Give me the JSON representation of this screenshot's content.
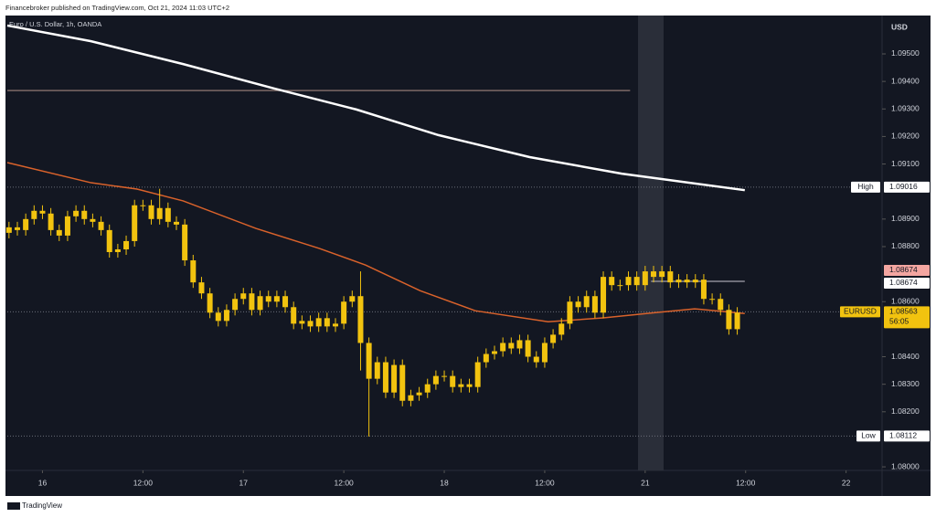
{
  "header": {
    "publisher": "Financebroker published on TradingView.com, Oct 21, 2024 11:03 UTC+2"
  },
  "footer": {
    "brand": "TradingView"
  },
  "chart_data": {
    "type": "candlestick",
    "title": "Euro / U.S. Dollar, 1h, OANDA",
    "y_axis_label": "USD",
    "xlim": [
      -4.2,
      100.3
    ],
    "ylim": [
      1.07987,
      1.09636
    ],
    "xticks": [
      {
        "value": 0,
        "label": "16"
      },
      {
        "value": 12,
        "label": "12:00"
      },
      {
        "value": 24,
        "label": "17"
      },
      {
        "value": 36,
        "label": "12:00"
      },
      {
        "value": 48,
        "label": "18"
      },
      {
        "value": 60,
        "label": "12:00"
      },
      {
        "value": 72,
        "label": "21"
      },
      {
        "value": 84,
        "label": "12:00"
      },
      {
        "value": 96,
        "label": "22"
      }
    ],
    "yticks": [
      {
        "value": 1.08,
        "label": "1.08000"
      },
      {
        "value": 1.082,
        "label": "1.08200"
      },
      {
        "value": 1.083,
        "label": "1.08300"
      },
      {
        "value": 1.084,
        "label": "1.08400"
      },
      {
        "value": 1.086,
        "label": "1.08600"
      },
      {
        "value": 1.088,
        "label": "1.08800"
      },
      {
        "value": 1.089,
        "label": "1.08900"
      },
      {
        "value": 1.091,
        "label": "1.09100"
      },
      {
        "value": 1.092,
        "label": "1.09200"
      },
      {
        "value": 1.093,
        "label": "1.09300"
      },
      {
        "value": 1.094,
        "label": "1.09400"
      },
      {
        "value": 1.095,
        "label": "1.09500"
      }
    ],
    "series": [
      {
        "name": "EURUSD",
        "color": "#f2c30f",
        "x": [
          -4,
          -3,
          -2,
          -1,
          0,
          1,
          2,
          3,
          4,
          5,
          6,
          7,
          8,
          9,
          10,
          11,
          12,
          13,
          14,
          15,
          16,
          17,
          18,
          19,
          20,
          21,
          22,
          23,
          24,
          25,
          26,
          27,
          28,
          29,
          30,
          31,
          32,
          33,
          34,
          35,
          36,
          37,
          38,
          39,
          40,
          41,
          42,
          43,
          44,
          45,
          46,
          47,
          48,
          49,
          50,
          51,
          52,
          53,
          54,
          55,
          56,
          57,
          58,
          59,
          60,
          61,
          62,
          63,
          64,
          65,
          66,
          67,
          68,
          69,
          70,
          71,
          72,
          73,
          74,
          75,
          76,
          77,
          78,
          79,
          80,
          81,
          82,
          83
        ],
        "open": [
          1.0885,
          1.0887,
          1.0886,
          1.089,
          1.0893,
          1.0892,
          1.0886,
          1.0884,
          1.0891,
          1.0893,
          1.089,
          1.0889,
          1.0886,
          1.0878,
          1.0879,
          1.0882,
          1.0895,
          1.0895,
          1.089,
          1.0894,
          1.0889,
          1.0888,
          1.0875,
          1.0867,
          1.0863,
          1.0856,
          1.0853,
          1.0857,
          1.0861,
          1.0863,
          1.0857,
          1.0862,
          1.086,
          1.0862,
          1.0858,
          1.0852,
          1.0853,
          1.0851,
          1.0854,
          1.0851,
          1.0852,
          1.086,
          1.0862,
          1.0845,
          1.0832,
          1.0838,
          1.0827,
          1.0837,
          1.0824,
          1.0826,
          1.0827,
          1.083,
          1.0833,
          1.0833,
          1.0829,
          1.083,
          1.0829,
          1.0838,
          1.0841,
          1.0842,
          1.0845,
          1.0843,
          1.0846,
          1.084,
          1.0838,
          1.0845,
          1.0848,
          1.0852,
          1.086,
          1.0858,
          1.0862,
          1.0856,
          1.0869,
          1.0866,
          1.0866,
          1.0869,
          1.0866,
          1.0871,
          1.0869,
          1.0871,
          1.0867,
          1.0868,
          1.0867,
          1.0868,
          1.0861,
          1.0861,
          1.0857,
          1.085
        ],
        "high": [
          1.0889,
          1.0889,
          1.0892,
          1.0895,
          1.0895,
          1.0894,
          1.0888,
          1.0893,
          1.0895,
          1.0895,
          1.0892,
          1.0891,
          1.0888,
          1.0881,
          1.0884,
          1.0897,
          1.0897,
          1.0897,
          1.0901,
          1.0896,
          1.0891,
          1.089,
          1.0877,
          1.0869,
          1.0865,
          1.0858,
          1.0859,
          1.0863,
          1.0865,
          1.0865,
          1.0864,
          1.0864,
          1.0864,
          1.0864,
          1.086,
          1.0855,
          1.0855,
          1.0856,
          1.0856,
          1.0854,
          1.0862,
          1.0864,
          1.0871,
          1.0847,
          1.084,
          1.084,
          1.0839,
          1.0839,
          1.0828,
          1.0829,
          1.0832,
          1.0835,
          1.0835,
          1.0835,
          1.0832,
          1.0832,
          1.084,
          1.0843,
          1.0844,
          1.0847,
          1.0847,
          1.0848,
          1.0848,
          1.0842,
          1.0847,
          1.085,
          1.0854,
          1.0862,
          1.0862,
          1.0864,
          1.0864,
          1.0871,
          1.0871,
          1.0868,
          1.0871,
          1.0871,
          1.0873,
          1.0873,
          1.0873,
          1.0873,
          1.087,
          1.087,
          1.087,
          1.087,
          1.0863,
          1.0863,
          1.0859,
          1.0858
        ],
        "low": [
          1.0883,
          1.0884,
          1.0884,
          1.0888,
          1.089,
          1.0884,
          1.0882,
          1.0882,
          1.0889,
          1.0888,
          1.0887,
          1.0884,
          1.0876,
          1.0876,
          1.0877,
          1.088,
          1.0893,
          1.0888,
          1.0888,
          1.0887,
          1.0886,
          1.0873,
          1.0865,
          1.0861,
          1.0854,
          1.0851,
          1.0851,
          1.0855,
          1.0859,
          1.0855,
          1.0855,
          1.0858,
          1.0858,
          1.0856,
          1.085,
          1.085,
          1.0849,
          1.0849,
          1.0849,
          1.0849,
          1.085,
          1.0858,
          1.0835,
          1.0811,
          1.083,
          1.0825,
          1.0825,
          1.0822,
          1.0822,
          1.0824,
          1.0825,
          1.0828,
          1.0831,
          1.0827,
          1.0827,
          1.0827,
          1.0827,
          1.0836,
          1.0839,
          1.084,
          1.0841,
          1.0841,
          1.0838,
          1.0836,
          1.0836,
          1.0843,
          1.0846,
          1.085,
          1.0856,
          1.0856,
          1.0854,
          1.0854,
          1.0864,
          1.0864,
          1.0864,
          1.0864,
          1.0864,
          1.0867,
          1.0867,
          1.0865,
          1.0865,
          1.0865,
          1.0865,
          1.0859,
          1.0859,
          1.0855,
          1.0848,
          1.0848
        ],
        "close": [
          1.0887,
          1.0886,
          1.089,
          1.0893,
          1.0892,
          1.0886,
          1.0884,
          1.0891,
          1.0893,
          1.089,
          1.0889,
          1.0886,
          1.0878,
          1.0879,
          1.0882,
          1.0895,
          1.0895,
          1.089,
          1.0894,
          1.0889,
          1.0888,
          1.0875,
          1.0867,
          1.0863,
          1.0856,
          1.0853,
          1.0857,
          1.0861,
          1.0863,
          1.0857,
          1.0862,
          1.086,
          1.0862,
          1.0858,
          1.0852,
          1.0853,
          1.0851,
          1.0854,
          1.0851,
          1.0852,
          1.086,
          1.0862,
          1.0845,
          1.0832,
          1.0838,
          1.0827,
          1.0837,
          1.0824,
          1.0826,
          1.0827,
          1.083,
          1.0833,
          1.0833,
          1.0829,
          1.083,
          1.0829,
          1.0838,
          1.0841,
          1.0842,
          1.0845,
          1.0843,
          1.0846,
          1.084,
          1.0838,
          1.0845,
          1.0848,
          1.0852,
          1.086,
          1.0858,
          1.0862,
          1.0856,
          1.0869,
          1.0866,
          1.0866,
          1.0869,
          1.0866,
          1.0871,
          1.0869,
          1.0871,
          1.0867,
          1.0868,
          1.0867,
          1.0868,
          1.0861,
          1.0861,
          1.0857,
          1.085,
          1.0856
        ]
      }
    ],
    "lines": [
      {
        "color": "#ffffff",
        "x": [
          -4.2,
          5.8,
          16.8,
          27.7,
          37.5,
          47.3,
          58.2,
          69.2,
          83.9
        ],
        "values": [
          1.09603,
          1.09546,
          1.09463,
          1.09374,
          1.09298,
          1.09205,
          1.09125,
          1.09065,
          1.09005
        ]
      },
      {
        "color": "#d9622b",
        "x": [
          -4.2,
          5.8,
          11.3,
          16.8,
          25.5,
          33.1,
          38.6,
          45.1,
          51.7,
          60.4,
          67.0,
          73.5,
          77.9,
          83.9
        ],
        "values": [
          1.09105,
          1.09032,
          1.09009,
          1.08966,
          1.08866,
          1.08793,
          1.08733,
          1.0864,
          1.08567,
          1.08527,
          1.08541,
          1.08561,
          1.08574,
          1.08557
        ]
      }
    ],
    "horizontal_lines": [
      {
        "value": 1.09367,
        "x": [
          -4.2,
          70.2
        ],
        "color": "#7d6a66"
      },
      {
        "value": 1.08674,
        "x": [
          72.7,
          83.9
        ],
        "color": "#8c8c96"
      }
    ],
    "levels": [
      {
        "name": "High",
        "value": 1.09016,
        "color": "#ffffff"
      },
      {
        "name": "Low",
        "value": 1.08112,
        "color": "#ffffff"
      },
      {
        "name": "EURUSD",
        "value": 1.08563,
        "countdown": "56:05",
        "color": "#f2c30f"
      }
    ],
    "price_labels": [
      {
        "value": 1.08674,
        "color": "#f4a6a1"
      },
      {
        "value": 1.08674,
        "color": "#ffffff"
      }
    ]
  }
}
